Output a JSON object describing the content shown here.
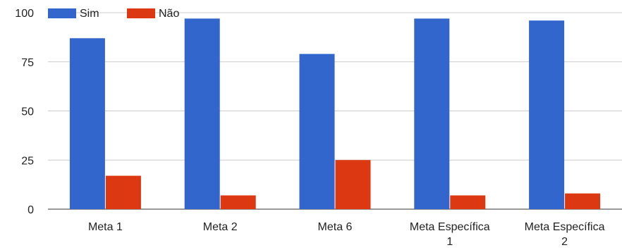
{
  "chart_data": {
    "type": "bar",
    "categories": [
      [
        "Meta 1"
      ],
      [
        "Meta 2"
      ],
      [
        "Meta 6"
      ],
      [
        "Meta Específica",
        "1"
      ],
      [
        "Meta Específica",
        "2"
      ]
    ],
    "series": [
      {
        "name": "Sim",
        "color": "#3366cc",
        "values": [
          87,
          97,
          79,
          97,
          96
        ]
      },
      {
        "name": "Não",
        "color": "#dc3912",
        "values": [
          17,
          7,
          25,
          7,
          8
        ]
      }
    ],
    "yticks": [
      "0",
      "25",
      "50",
      "75",
      "100"
    ],
    "ylim": [
      0,
      100
    ],
    "grid": true,
    "legend_position": "top-left",
    "title": "",
    "xlabel": "",
    "ylabel": ""
  }
}
